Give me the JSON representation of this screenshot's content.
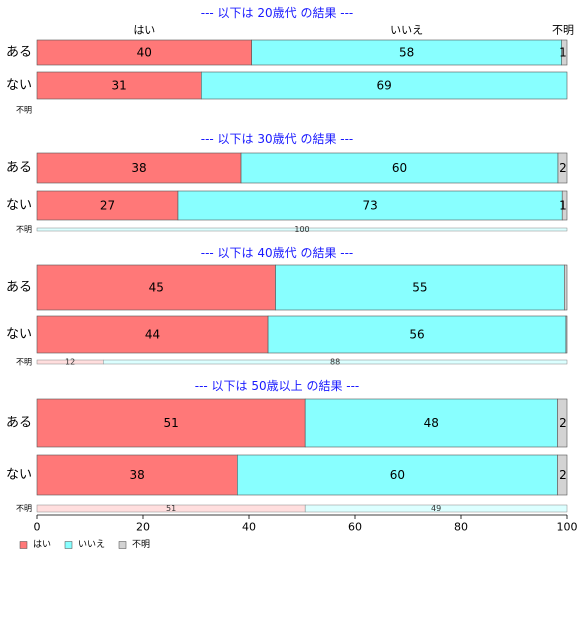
{
  "chart_data": {
    "type": "bar",
    "orientation": "horizontal",
    "stacked": true,
    "xlim": [
      0,
      100
    ],
    "x_ticks": [
      "0",
      "20",
      "40",
      "60",
      "80",
      "100"
    ],
    "legend": {
      "placement": "bottom-left",
      "items": [
        {
          "label": "はい",
          "color": "#ff7878"
        },
        {
          "label": "いいえ",
          "color": "#88ffff"
        },
        {
          "label": "不明",
          "color": "#d3d3d3"
        }
      ]
    },
    "top_header_labels": [
      "はい",
      "いいえ",
      "不明"
    ],
    "panels": [
      {
        "title": "--- 以下は 20歳代 の結果 ---",
        "rows": [
          {
            "label": "ある",
            "values": [
              40.5,
              58.5,
              1
            ],
            "labels": [
              "40",
              "58",
              "1"
            ]
          },
          {
            "label": "ない",
            "values": [
              31,
              69,
              0
            ],
            "labels": [
              "31",
              "69",
              ""
            ]
          }
        ],
        "unknown": {
          "label": "不明",
          "values": [],
          "labels": []
        }
      },
      {
        "title": "--- 以下は 30歳代 の結果 ---",
        "rows": [
          {
            "label": "ある",
            "values": [
              38.5,
              59.8,
              1.7
            ],
            "labels": [
              "38",
              "60",
              "2"
            ]
          },
          {
            "label": "ない",
            "values": [
              26.6,
              72.5,
              0.9
            ],
            "labels": [
              "27",
              "73",
              "1"
            ]
          }
        ],
        "unknown": {
          "label": "不明",
          "values": [
            0,
            100,
            0
          ],
          "labels": [
            "",
            "100",
            ""
          ]
        }
      },
      {
        "title": "--- 以下は 40歳代 の結果 ---",
        "rows": [
          {
            "label": "ある",
            "values": [
              45,
              54.5,
              0.5
            ],
            "labels": [
              "45",
              "55",
              ""
            ]
          },
          {
            "label": "ない",
            "values": [
              43.6,
              56.2,
              0.2
            ],
            "labels": [
              "44",
              "56",
              ""
            ]
          }
        ],
        "unknown": {
          "label": "不明",
          "values": [
            12.5,
            87.5,
            0
          ],
          "labels": [
            "12",
            "88",
            ""
          ]
        }
      },
      {
        "title": "--- 以下は 50歳以上 の結果 ---",
        "rows": [
          {
            "label": "ある",
            "values": [
              50.6,
              47.6,
              1.8
            ],
            "labels": [
              "51",
              "48",
              "2"
            ]
          },
          {
            "label": "ない",
            "values": [
              37.8,
              60.4,
              1.8
            ],
            "labels": [
              "38",
              "60",
              "2"
            ]
          }
        ],
        "unknown": {
          "label": "不明",
          "values": [
            50.6,
            49.4,
            0
          ],
          "labels": [
            "51",
            "49",
            ""
          ]
        }
      }
    ]
  }
}
